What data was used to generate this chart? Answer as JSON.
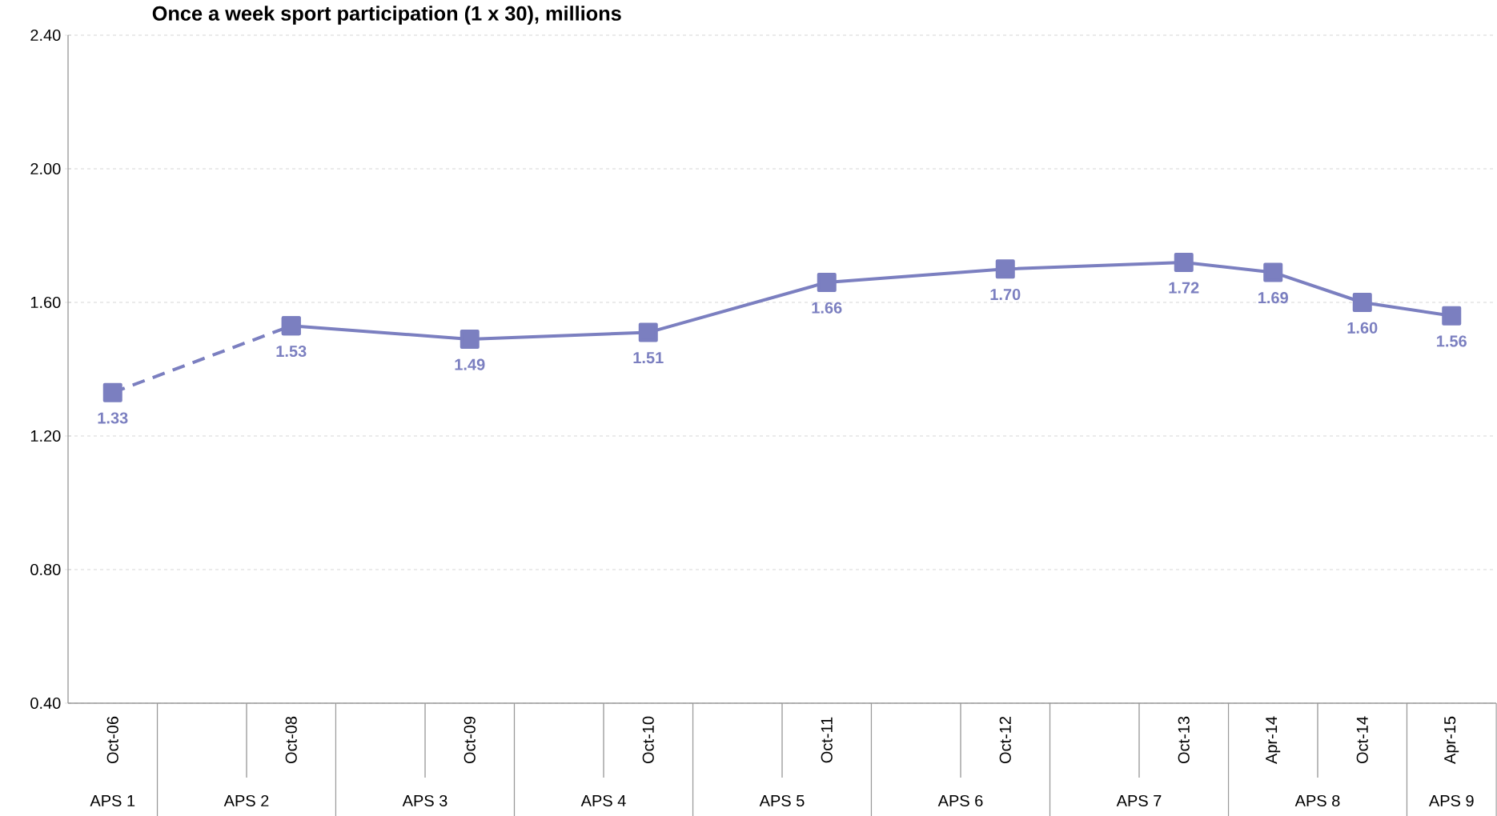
{
  "chart_data": {
    "type": "line",
    "title": "Once a week sport participation (1 x 30), millions",
    "categories": [
      "Oct-06",
      null,
      "Oct-08",
      null,
      "Oct-09",
      null,
      "Oct-10",
      null,
      "Oct-11",
      null,
      "Oct-12",
      null,
      "Oct-13",
      "Apr-14",
      "Oct-14",
      "Apr-15"
    ],
    "series": [
      {
        "color": "#7b7fc0",
        "line_style": "dashed",
        "values": [
          1.33,
          null,
          1.53,
          null,
          null,
          null,
          null,
          null,
          null,
          null,
          null,
          null,
          null,
          null,
          null,
          null
        ],
        "value_labels": [
          "1.33",
          null,
          null,
          null,
          null,
          null,
          null,
          null,
          null,
          null,
          null,
          null,
          null,
          null,
          null,
          null
        ]
      },
      {
        "color": "#7b7fc0",
        "line_style": "solid",
        "values": [
          null,
          null,
          1.53,
          null,
          1.49,
          null,
          1.51,
          null,
          1.66,
          null,
          1.7,
          null,
          1.72,
          1.69,
          1.6,
          1.56
        ],
        "value_labels": [
          null,
          null,
          "1.53",
          null,
          "1.49",
          null,
          "1.51",
          null,
          "1.66",
          null,
          "1.70",
          null,
          "1.72",
          "1.69",
          "1.60",
          "1.56"
        ]
      }
    ],
    "ylim": [
      0.4,
      2.4
    ],
    "yticks": [
      {
        "value": 0.4,
        "label": "0.40"
      },
      {
        "value": 0.8,
        "label": "0.80"
      },
      {
        "value": 1.2,
        "label": "1.20"
      },
      {
        "value": 1.6,
        "label": "1.60"
      },
      {
        "value": 2.0,
        "label": "2.00"
      },
      {
        "value": 2.4,
        "label": "2.40"
      }
    ],
    "grid": "y",
    "marker": "square",
    "annotations": [
      "APS 1",
      "APS 2",
      "APS 3",
      "APS 4",
      "APS 5",
      "APS 6",
      "APS 7",
      "APS 8",
      "APS 9"
    ]
  }
}
